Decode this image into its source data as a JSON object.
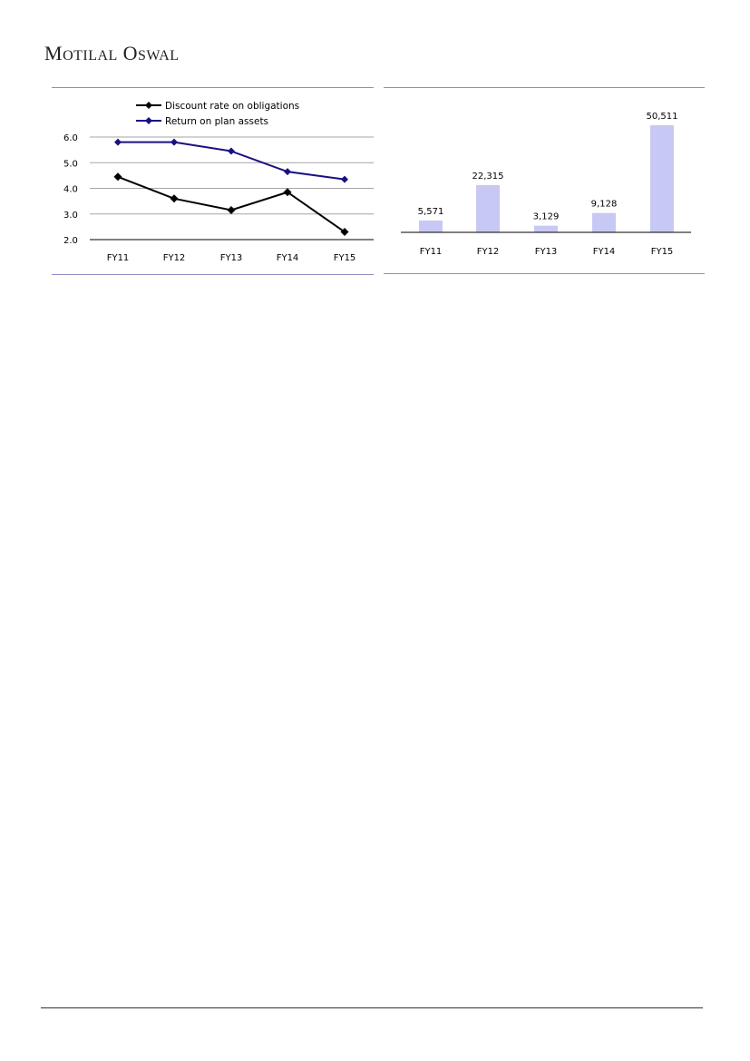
{
  "header": {
    "brand_first_1": "M",
    "brand_rest_1": "otilal",
    "brand_first_2": "O",
    "brand_rest_2": "swal"
  },
  "colors": {
    "series_discount": "#000000",
    "series_return": "#1a1080",
    "bar": "#c8c8f5",
    "rule": "#8e8ec2",
    "grid": "#a6a6a6"
  },
  "chart_data": [
    {
      "type": "line",
      "categories": [
        "FY11",
        "FY12",
        "FY13",
        "FY14",
        "FY15"
      ],
      "y_tick_labels": [
        "2.0",
        "3.0",
        "4.0",
        "5.0",
        "6.0"
      ],
      "ylim": [
        2.0,
        6.0
      ],
      "grid": true,
      "legend_placement": "top",
      "series": [
        {
          "name": "Discount rate on obligations",
          "values": [
            4.45,
            3.6,
            3.15,
            3.85,
            2.3
          ],
          "color": "#000000",
          "marker": "diamond"
        },
        {
          "name": "Return on plan assets",
          "values": [
            5.8,
            5.8,
            5.45,
            4.65,
            4.35
          ],
          "color": "#1a1080",
          "marker": "diamond"
        }
      ]
    },
    {
      "type": "bar",
      "categories": [
        "FY11",
        "FY12",
        "FY13",
        "FY14",
        "FY15"
      ],
      "values": [
        5571,
        22315,
        3129,
        9128,
        50511
      ],
      "data_labels": [
        "5,571",
        "22,315",
        "3,129",
        "9,128",
        "50,511"
      ],
      "ylim": [
        0,
        50511
      ],
      "grid": false
    }
  ]
}
